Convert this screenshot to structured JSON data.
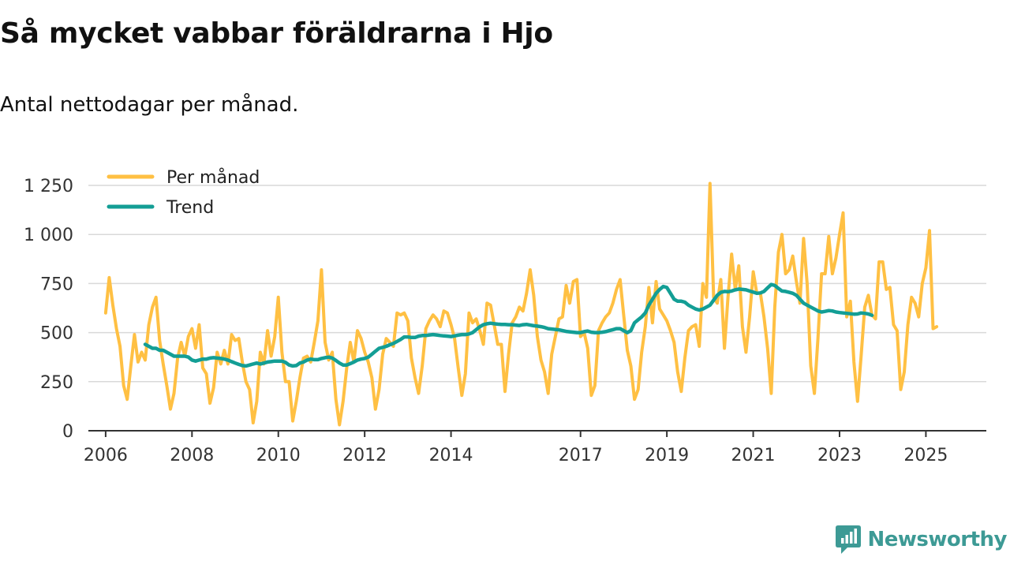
{
  "title": "Så mycket vabbar föräldrarna i Hjo",
  "subtitle": "Antal nettodagar per månad.",
  "brand": {
    "name": "Newsworthy",
    "color": "#3d9a95"
  },
  "chart_data": {
    "type": "line",
    "title": "Så mycket vabbar föräldrarna i Hjo",
    "subtitle": "Antal nettodagar per månad.",
    "xlabel": "",
    "ylabel": "",
    "xlim": [
      2005.6,
      2026.4
    ],
    "ylim": [
      0,
      1250
    ],
    "grid": true,
    "legend_position": "top-left",
    "x_ticks": [
      2006,
      2008,
      2010,
      2012,
      2014,
      2017,
      2019,
      2021,
      2023,
      2025
    ],
    "x_tick_labels": [
      "2006",
      "2008",
      "2010",
      "2012",
      "2014",
      "2017",
      "2019",
      "2021",
      "2023",
      "2025"
    ],
    "y_ticks": [
      0,
      250,
      500,
      750,
      1000,
      1250
    ],
    "y_tick_labels": [
      "0",
      "250",
      "500",
      "750",
      "1 000",
      "1 250"
    ],
    "series": [
      {
        "name": "Per månad",
        "color": "#ffc043",
        "start": 2006.0,
        "step": 0.0833333,
        "values": [
          600,
          780,
          640,
          520,
          430,
          230,
          160,
          330,
          490,
          350,
          400,
          360,
          540,
          630,
          680,
          460,
          340,
          230,
          110,
          190,
          370,
          450,
          380,
          480,
          520,
          420,
          540,
          320,
          290,
          140,
          220,
          400,
          340,
          410,
          340,
          490,
          460,
          470,
          350,
          250,
          210,
          40,
          150,
          400,
          340,
          510,
          380,
          480,
          680,
          400,
          250,
          250,
          50,
          150,
          270,
          370,
          380,
          350,
          450,
          560,
          820,
          450,
          360,
          400,
          160,
          30,
          150,
          320,
          450,
          350,
          510,
          470,
          400,
          350,
          270,
          110,
          210,
          390,
          470,
          450,
          430,
          600,
          590,
          600,
          560,
          370,
          270,
          190,
          330,
          520,
          560,
          590,
          570,
          530,
          610,
          600,
          540,
          470,
          320,
          180,
          290,
          600,
          550,
          570,
          510,
          440,
          650,
          640,
          540,
          440,
          440,
          200,
          390,
          550,
          580,
          630,
          610,
          700,
          820,
          690,
          480,
          360,
          300,
          190,
          390,
          480,
          570,
          580,
          740,
          650,
          760,
          770,
          480,
          500,
          420,
          180,
          230,
          510,
          550,
          580,
          600,
          650,
          720,
          770,
          590,
          410,
          330,
          160,
          210,
          400,
          530,
          730,
          550,
          760,
          620,
          590,
          560,
          510,
          450,
          300,
          200,
          370,
          510,
          530,
          540,
          430,
          750,
          680,
          1260,
          680,
          650,
          770,
          420,
          680,
          900,
          720,
          840,
          530,
          400,
          580,
          810,
          700,
          700,
          580,
          420,
          190,
          630,
          910,
          1000,
          800,
          820,
          890,
          760,
          650,
          980,
          750,
          330,
          190,
          470,
          800,
          800,
          990,
          800,
          880,
          1000,
          1110,
          580,
          660,
          350,
          150,
          380,
          630,
          690,
          590,
          570,
          860,
          860,
          720,
          730,
          540,
          510,
          210,
          300,
          540,
          680,
          650,
          580,
          750,
          830,
          1020,
          520,
          530
        ]
      },
      {
        "name": "Trend",
        "color": "#139e95",
        "start": 2006.9167,
        "step": 0.0833333,
        "values": [
          440,
          430,
          420,
          420,
          410,
          410,
          400,
          390,
          380,
          380,
          380,
          380,
          375,
          360,
          355,
          360,
          365,
          365,
          370,
          372,
          370,
          368,
          365,
          360,
          352,
          345,
          338,
          332,
          330,
          335,
          340,
          345,
          340,
          345,
          350,
          352,
          355,
          355,
          355,
          348,
          335,
          330,
          332,
          345,
          350,
          360,
          365,
          362,
          362,
          368,
          372,
          375,
          370,
          358,
          345,
          335,
          335,
          342,
          350,
          360,
          365,
          368,
          375,
          390,
          405,
          420,
          425,
          430,
          438,
          445,
          455,
          465,
          478,
          478,
          475,
          475,
          482,
          485,
          485,
          488,
          490,
          488,
          485,
          483,
          482,
          480,
          483,
          487,
          490,
          490,
          493,
          500,
          515,
          530,
          540,
          545,
          548,
          545,
          543,
          542,
          542,
          540,
          540,
          538,
          536,
          540,
          542,
          538,
          535,
          533,
          530,
          526,
          520,
          518,
          516,
          514,
          510,
          506,
          504,
          502,
          500,
          500,
          505,
          508,
          502,
          500,
          500,
          502,
          505,
          510,
          515,
          520,
          520,
          510,
          500,
          510,
          550,
          565,
          580,
          600,
          640,
          670,
          700,
          720,
          735,
          730,
          700,
          670,
          660,
          660,
          655,
          640,
          630,
          620,
          615,
          620,
          630,
          640,
          665,
          690,
          705,
          710,
          708,
          712,
          718,
          722,
          720,
          718,
          712,
          706,
          700,
          702,
          710,
          728,
          745,
          740,
          725,
          712,
          710,
          705,
          700,
          690,
          670,
          650,
          640,
          630,
          620,
          610,
          605,
          608,
          612,
          610,
          605,
          602,
          600,
          598,
          596,
          594,
          595,
          600,
          598,
          595,
          588
        ]
      }
    ]
  }
}
